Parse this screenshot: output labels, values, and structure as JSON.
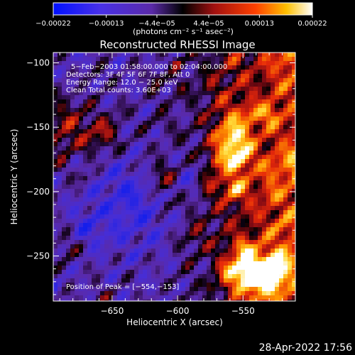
{
  "chart_data": {
    "type": "heatmap",
    "title": "Reconstructed RHESSI Image",
    "xlabel": "Heliocentric X (arcsec)",
    "ylabel": "Heliocentric Y (arcsec)",
    "xlim": [
      -695,
      -510
    ],
    "ylim": [
      -285,
      -92
    ],
    "x_ticks": [
      -650,
      -600,
      -550
    ],
    "x_tick_labels": [
      "−650",
      "−600",
      "−550"
    ],
    "y_ticks": [
      -100,
      -150,
      -200,
      -250
    ],
    "y_tick_labels": [
      "−100",
      "−150",
      "−200",
      "−250"
    ],
    "colorbar": {
      "min": -0.00022,
      "max": 0.00022,
      "ticks": [
        -0.00022,
        -0.00013,
        -4.4e-05,
        4.4e-05,
        0.00013,
        0.00022
      ],
      "tick_labels": [
        "−0.00022",
        "−0.00013",
        "−4.4e−05",
        "4.4e−05",
        "0.00013",
        "0.00022"
      ],
      "units": "(photons cm⁻² s⁻¹ asec⁻²)"
    },
    "annotations": [
      "5−Feb−2003 01:58:00.000 to 02:04:00.000",
      "Detectors: 3F 4F 5F 6F 7F 8F, Att 0",
      "Energy Range: 12.0 − 25.0 keV",
      "Clean    Total counts: 3.60E+03"
    ],
    "peak_label": "Position of Peak = [−554,−153]",
    "peak": [
      -554,
      -153
    ],
    "grid": false
  },
  "timestamp": "28-Apr-2022 17:56"
}
